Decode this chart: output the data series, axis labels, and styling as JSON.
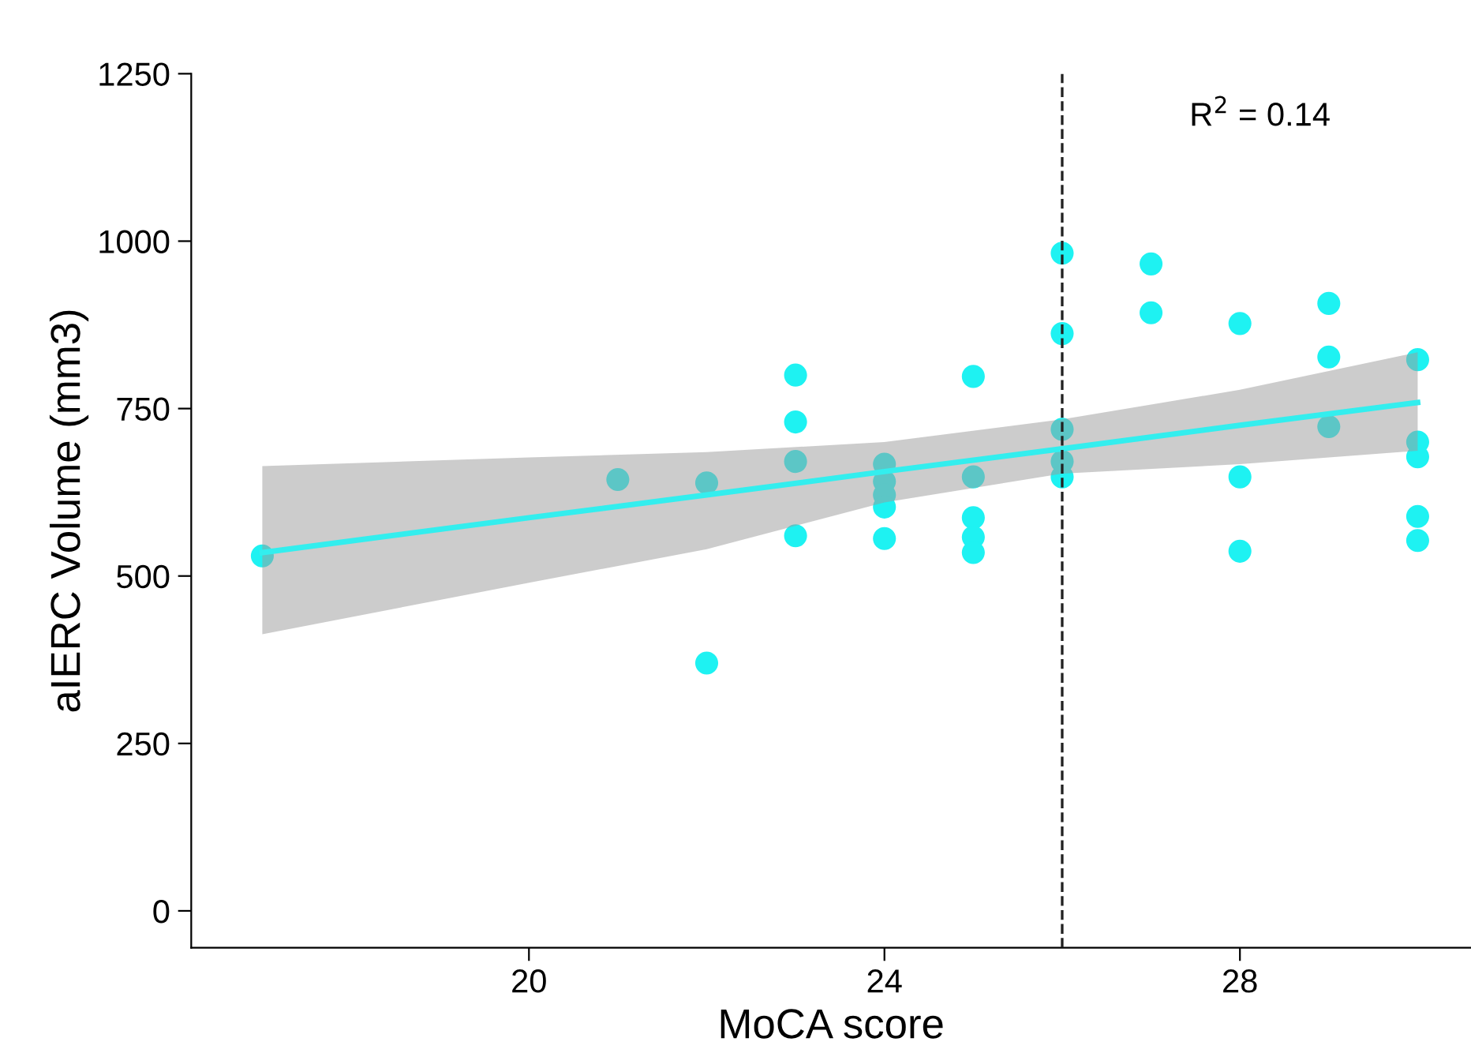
{
  "chart_data": {
    "type": "scatter",
    "xlabel": "MoCA score",
    "ylabel": "aIERC Volume (mm3)",
    "xlim": [
      16.2,
      30.6
    ],
    "xticks": [
      20,
      24,
      28
    ],
    "ylim": [
      -55,
      1250
    ],
    "yticks": [
      0,
      250,
      500,
      750,
      1000,
      1250
    ],
    "grid": false,
    "legend": false,
    "series": [
      {
        "marker": "circle",
        "color": "#1ef2f2",
        "x": [
          17,
          21,
          22,
          22,
          23,
          23,
          23,
          23,
          24,
          24,
          24,
          24,
          24,
          25,
          25,
          25,
          25,
          25,
          26,
          26,
          26,
          26,
          26,
          27,
          27,
          28,
          28,
          28,
          29,
          29,
          29,
          30,
          30,
          30,
          30,
          30
        ],
        "values": [
          530,
          644,
          639,
          370,
          800,
          730,
          671,
          560,
          667,
          641,
          621,
          603,
          556,
          798,
          648,
          587,
          558,
          535,
          982,
          862,
          719,
          671,
          648,
          966,
          893,
          877,
          648,
          537,
          907,
          827,
          723,
          823,
          700,
          678,
          589,
          553
        ]
      },
      {
        "type": "line",
        "marker": "none",
        "color": "#33eeee",
        "line_style": "solid",
        "x": [
          17,
          20,
          22,
          24,
          26,
          28,
          30
        ],
        "values": [
          535,
          587,
          621,
          656,
          690,
          725,
          759
        ],
        "lower": [
          413,
          490,
          540,
          610,
          653,
          667,
          687
        ],
        "upper": [
          664,
          677,
          685,
          700,
          734,
          778,
          834
        ]
      }
    ],
    "ref_lines": [
      {
        "axis": "x",
        "value": 26,
        "color": "#222222",
        "line_style": "dashed"
      }
    ],
    "annotations": [
      "R$^{2}$ = 0.14"
    ]
  }
}
